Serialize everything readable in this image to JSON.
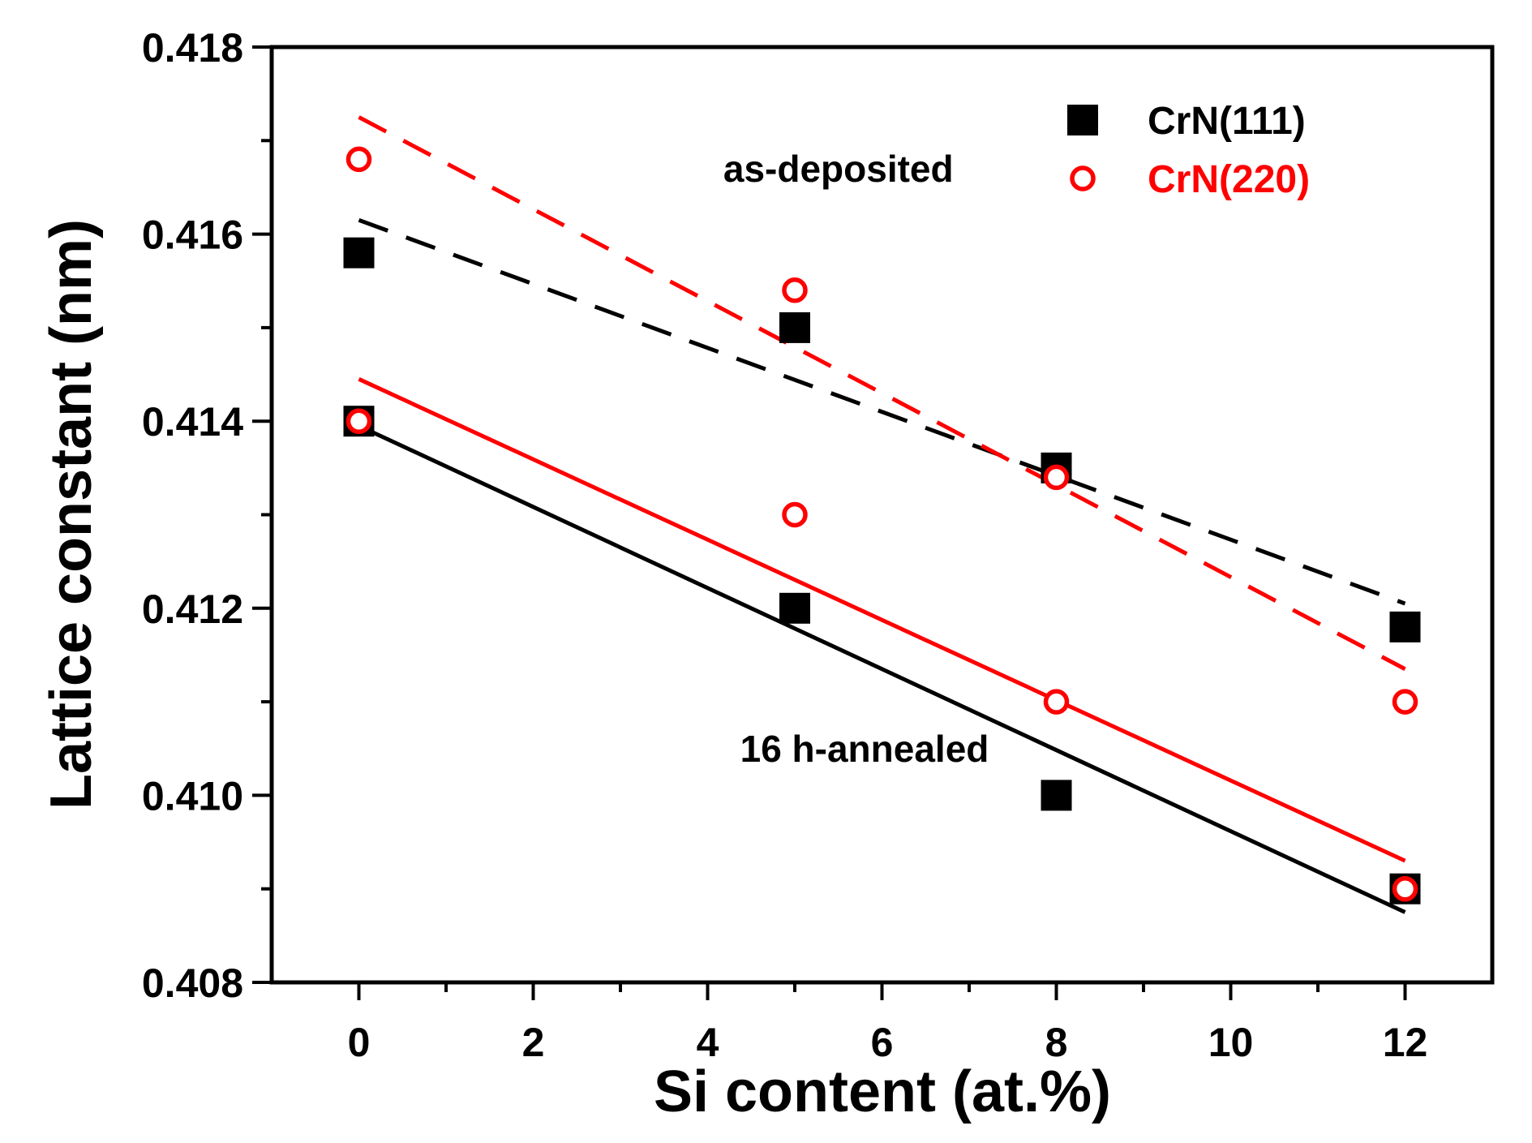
{
  "chart_data": {
    "type": "scatter",
    "xlabel": "Si content (at.%)",
    "ylabel": "Lattice constant (nm)",
    "xlim": [
      -1,
      13
    ],
    "ylim": [
      0.408,
      0.418
    ],
    "x_ticks": [
      0,
      2,
      4,
      6,
      8,
      10,
      12
    ],
    "y_ticks": [
      0.408,
      0.41,
      0.412,
      0.414,
      0.416,
      0.418
    ],
    "x_tick_labels": [
      "0",
      "2",
      "4",
      "6",
      "8",
      "10",
      "12"
    ],
    "y_tick_labels": [
      "0.408",
      "0.410",
      "0.412",
      "0.414",
      "0.416",
      "0.418"
    ],
    "grid": false,
    "legend_position": "top-right",
    "series": [
      {
        "name": "CrN(111)",
        "marker": "filled-square",
        "color": "#000000",
        "condition": "as-deposited",
        "x": [
          0,
          5,
          8,
          12
        ],
        "y": [
          0.4158,
          0.415,
          0.4135,
          0.4118
        ]
      },
      {
        "name": "CrN(220)",
        "marker": "open-circle",
        "color": "#ff0000",
        "condition": "as-deposited",
        "x": [
          0,
          5,
          8,
          12
        ],
        "y": [
          0.4168,
          0.4154,
          0.4134,
          0.411
        ]
      },
      {
        "name": "CrN(111)",
        "marker": "filled-square",
        "color": "#000000",
        "condition": "16 h-annealed",
        "x": [
          0,
          5,
          8,
          12
        ],
        "y": [
          0.414,
          0.412,
          0.41,
          0.409
        ]
      },
      {
        "name": "CrN(220)",
        "marker": "open-circle",
        "color": "#ff0000",
        "condition": "16 h-annealed",
        "x": [
          0,
          5,
          8,
          12
        ],
        "y": [
          0.414,
          0.413,
          0.411,
          0.409
        ]
      }
    ],
    "fit_lines": [
      {
        "condition": "as-deposited",
        "series": "CrN(111)",
        "style": "dashed",
        "color": "#000000",
        "x": [
          0,
          12
        ],
        "y": [
          0.41615,
          0.41205
        ]
      },
      {
        "condition": "as-deposited",
        "series": "CrN(220)",
        "style": "dashed",
        "color": "#ff0000",
        "x": [
          0,
          12
        ],
        "y": [
          0.41725,
          0.41135
        ]
      },
      {
        "condition": "16 h-annealed",
        "series": "CrN(111)",
        "style": "solid",
        "color": "#000000",
        "x": [
          0,
          12
        ],
        "y": [
          0.41395,
          0.40875
        ]
      },
      {
        "condition": "16 h-annealed",
        "series": "CrN(220)",
        "style": "solid",
        "color": "#ff0000",
        "x": [
          0,
          12
        ],
        "y": [
          0.41445,
          0.4093
        ]
      }
    ],
    "legend": [
      {
        "label": "CrN(111)",
        "marker": "filled-square",
        "color": "#000000"
      },
      {
        "label": "CrN(220)",
        "marker": "open-circle",
        "color": "#ff0000"
      }
    ],
    "annotations": [
      {
        "text": "as-deposited",
        "x": 5.5,
        "y": 0.4167
      },
      {
        "text": "16 h-annealed",
        "x": 5.8,
        "y": 0.4105
      }
    ]
  }
}
